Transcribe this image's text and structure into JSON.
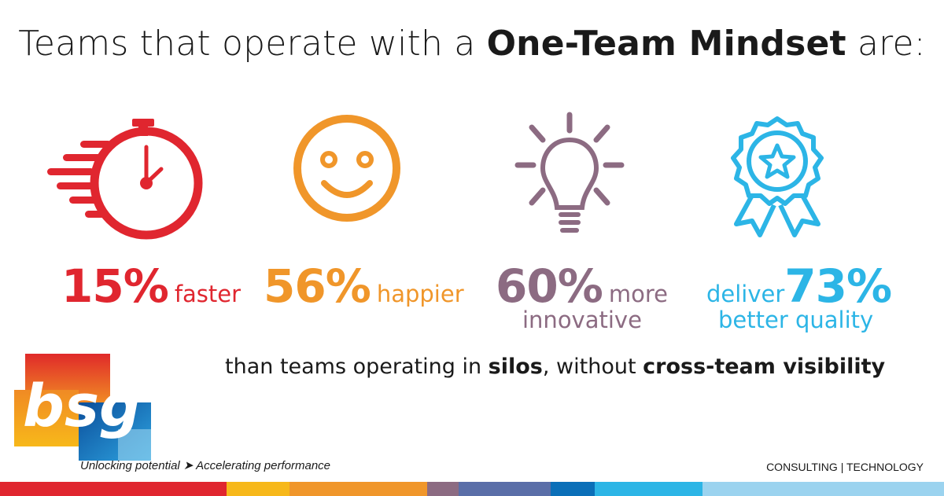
{
  "title": {
    "prefix": "Teams that operate with a ",
    "bold": "One-Team Mindset",
    "suffix": " are:"
  },
  "stats": [
    {
      "value": "15%",
      "label": "faster",
      "color": "#e0262f",
      "icon": "stopwatch-icon"
    },
    {
      "value": "56%",
      "label": "happier",
      "color": "#f0962a",
      "icon": "smiley-face-icon"
    },
    {
      "value": "60%",
      "label": "more",
      "label2": "innovative",
      "color": "#8c6b82",
      "icon": "lightbulb-icon"
    },
    {
      "prefix": "deliver",
      "value": "73%",
      "label2": "better quality",
      "color": "#2cb5e6",
      "icon": "award-ribbon-icon"
    }
  ],
  "subline": {
    "part1": "than teams operating in ",
    "bold1": "silos",
    "part2": ", without ",
    "bold2": "cross-team visibility"
  },
  "logo": {
    "text": "bsg",
    "colors": [
      "#e02a2a",
      "#f5a623",
      "#0b4e9b",
      "#2ea4e0"
    ]
  },
  "tagline": "Unlocking potential ➤ Accelerating performance",
  "corp": "CONSULTING | TECHNOLOGY",
  "stripe_colors": [
    "#e0262f",
    "#f7b81a",
    "#f0962a",
    "#8c6b82",
    "#5a6ea8",
    "#0b6fb8",
    "#2cb5e6",
    "#9bd3ef"
  ]
}
